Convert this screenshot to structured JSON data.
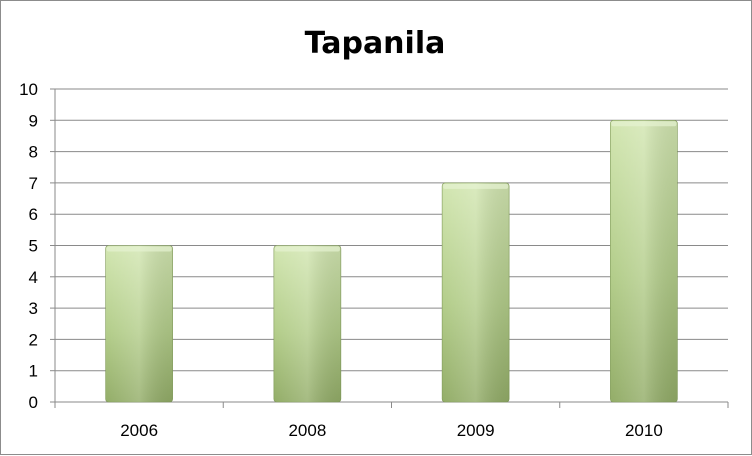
{
  "chart_data": {
    "type": "bar",
    "title": "Tapanila",
    "categories": [
      "2006",
      "2008",
      "2009",
      "2010"
    ],
    "values": [
      5,
      5,
      7,
      9
    ],
    "xlabel": "",
    "ylabel": "",
    "ylim": [
      0,
      10
    ],
    "yticks": [
      "0",
      "1",
      "2",
      "3",
      "4",
      "5",
      "6",
      "7",
      "8",
      "9",
      "10"
    ],
    "grid": true,
    "legend": "none",
    "bar_color": "#a9c47f"
  }
}
